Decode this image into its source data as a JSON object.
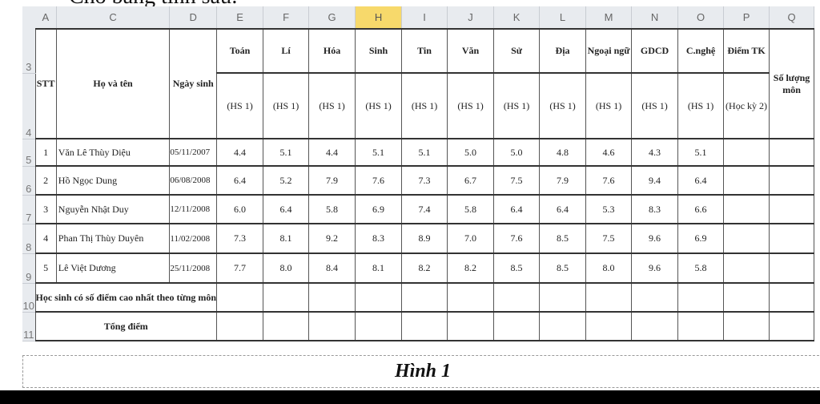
{
  "intro_text": "Cho bảng tính sau:",
  "column_letters": [
    "A",
    "C",
    "D",
    "E",
    "F",
    "G",
    "H",
    "I",
    "J",
    "K",
    "L",
    "M",
    "N",
    "O",
    "P",
    "Q"
  ],
  "selected_column": "H",
  "row_numbers": [
    "3",
    "4",
    "5",
    "6",
    "7",
    "8",
    "9",
    "10",
    "11"
  ],
  "headers": {
    "stt": "STT",
    "name": "Họ và tên",
    "dob": "Ngày sinh",
    "subjects": [
      "Toán",
      "Lí",
      "Hóa",
      "Sinh",
      "Tin",
      "Văn",
      "Sử",
      "Địa",
      "Ngoại ngữ",
      "GDCD",
      "C.nghệ"
    ],
    "subject_sub": "(HS 1)",
    "final": "Điểm TK",
    "final_sub": "(Học kỳ 2)",
    "count": "Số lượng môn"
  },
  "students": [
    {
      "stt": "1",
      "name": "Văn Lê Thùy Diệu",
      "dob": "05/11/2007",
      "scores": [
        "4.4",
        "5.1",
        "4.4",
        "5.1",
        "5.1",
        "5.0",
        "5.0",
        "4.8",
        "4.6",
        "4.3",
        "5.1"
      ]
    },
    {
      "stt": "2",
      "name": "Hồ Ngọc Dung",
      "dob": "06/08/2008",
      "scores": [
        "6.4",
        "5.2",
        "7.9",
        "7.6",
        "7.3",
        "6.7",
        "7.5",
        "7.9",
        "7.6",
        "9.4",
        "6.4"
      ]
    },
    {
      "stt": "3",
      "name": "Nguyễn Nhật Duy",
      "dob": "12/11/2008",
      "scores": [
        "6.0",
        "6.4",
        "5.8",
        "6.9",
        "7.4",
        "5.8",
        "6.4",
        "6.4",
        "5.3",
        "8.3",
        "6.6"
      ]
    },
    {
      "stt": "4",
      "name": "Phan Thị Thùy Duyên",
      "dob": "11/02/2008",
      "scores": [
        "7.3",
        "8.1",
        "9.2",
        "8.3",
        "8.9",
        "7.0",
        "7.6",
        "8.5",
        "7.5",
        "9.6",
        "6.9"
      ]
    },
    {
      "stt": "5",
      "name": "Lê Việt Dương",
      "dob": "25/11/2008",
      "scores": [
        "7.7",
        "8.0",
        "8.4",
        "8.1",
        "8.2",
        "8.2",
        "8.5",
        "8.5",
        "8.0",
        "9.6",
        "5.8"
      ]
    }
  ],
  "footer_rows": [
    "Học sinh có số điểm cao nhất theo từng môn",
    "Tổng điểm"
  ],
  "caption": "Hình 1"
}
